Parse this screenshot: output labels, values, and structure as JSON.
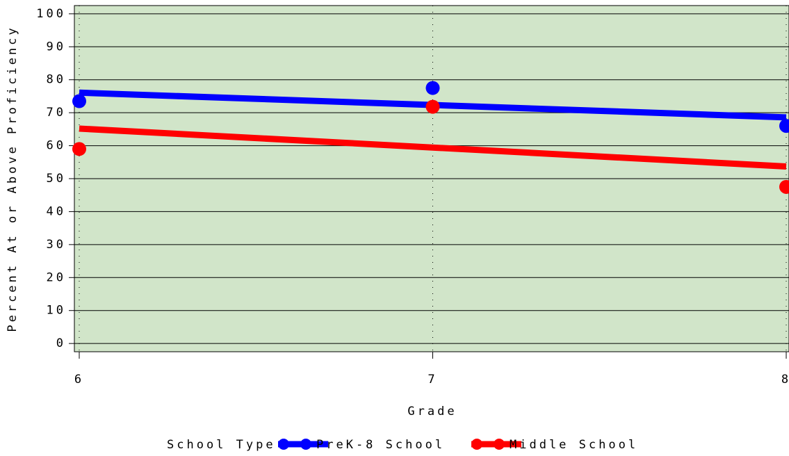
{
  "chart_data": {
    "type": "scatter",
    "x_label": "Grade",
    "y_label": "Percent At or Above Proficiency",
    "legend_title": "School Type",
    "x": [
      6,
      7,
      8
    ],
    "series": [
      {
        "name": "PreK-8 School",
        "color": "#0000ff",
        "values": [
          73.5,
          77.5,
          66
        ]
      },
      {
        "name": "Middle School",
        "color": "#ff0000",
        "values": [
          59,
          71.8,
          47.5
        ]
      }
    ],
    "xlim": [
      6,
      8
    ],
    "xticks": [
      6,
      7,
      8
    ],
    "ylim": [
      -2.5,
      102.5
    ],
    "yticks": [
      0,
      10,
      20,
      30,
      40,
      50,
      60,
      70,
      80,
      90,
      100
    ],
    "grid": true,
    "fit_line": true,
    "legend": "bottom"
  }
}
